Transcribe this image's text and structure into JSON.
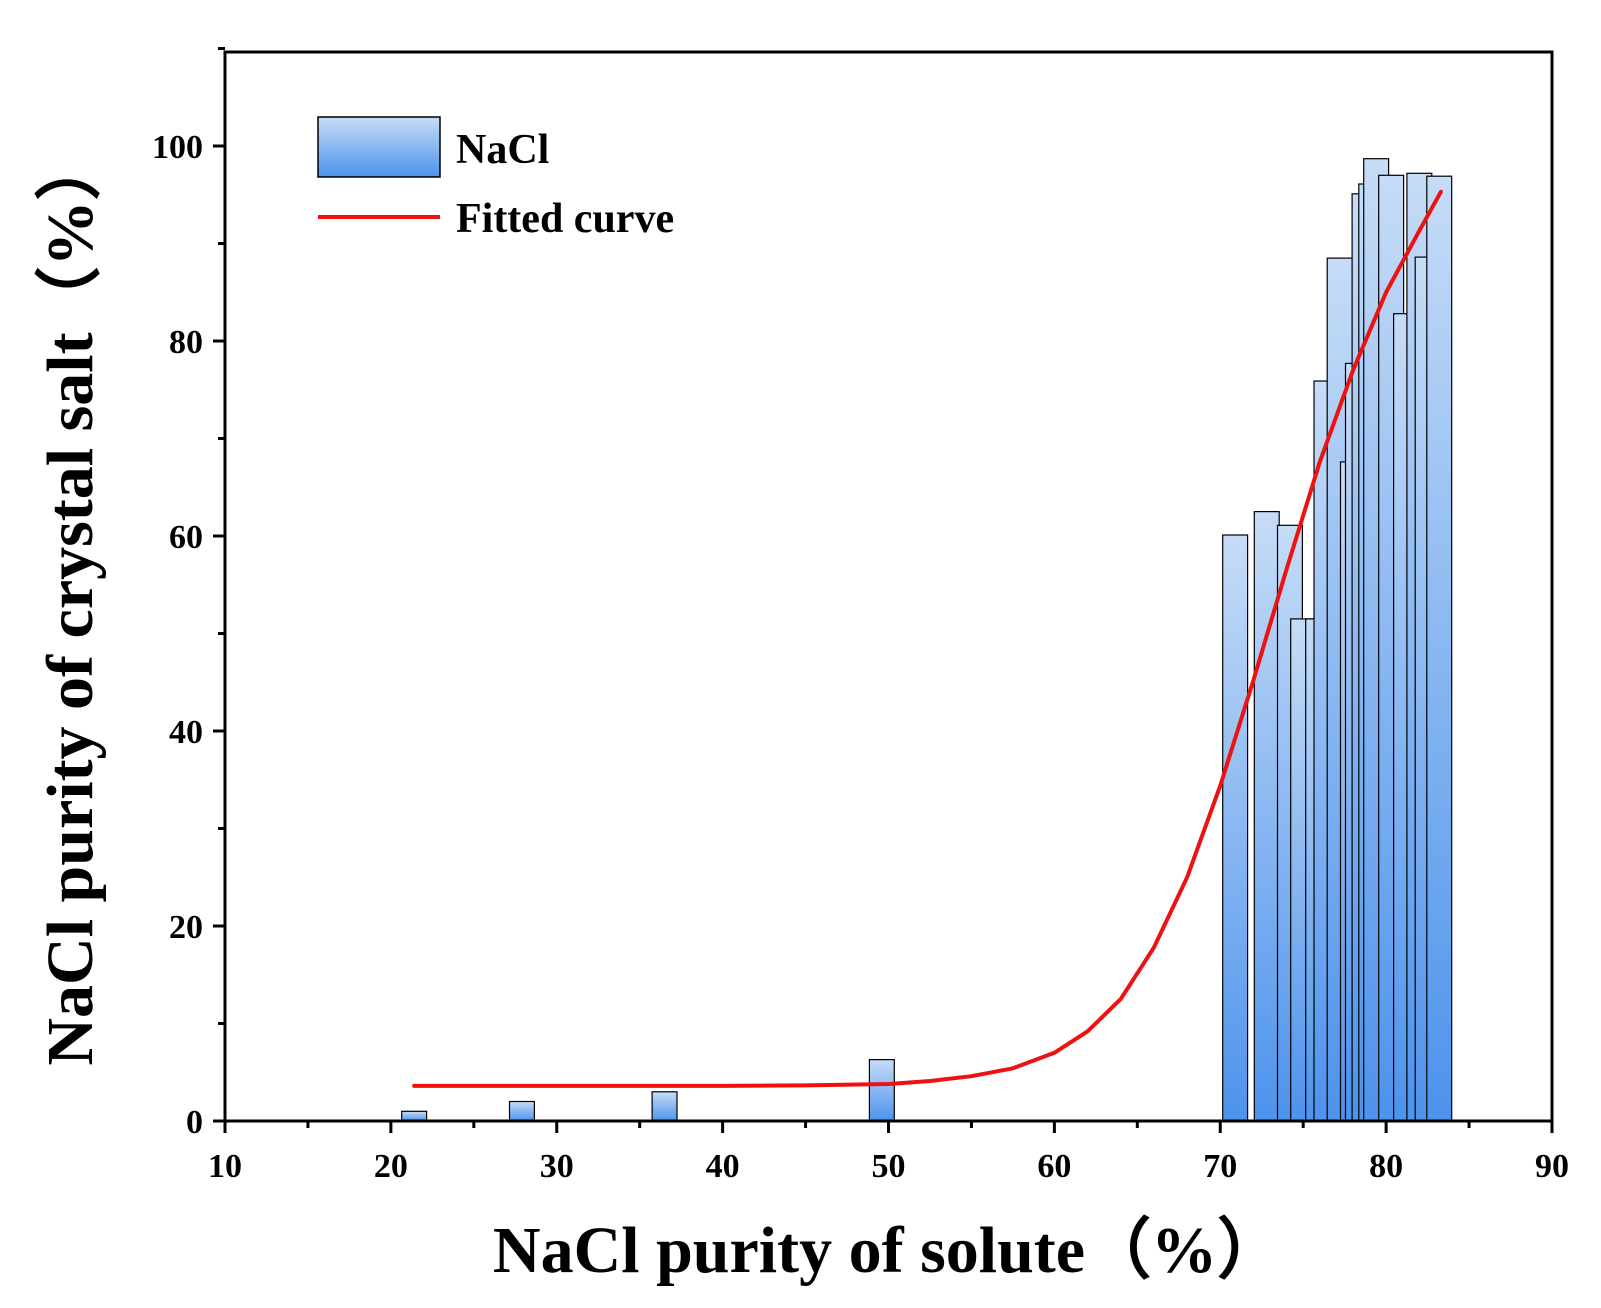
{
  "chart_data": {
    "type": "bar",
    "xlabel": "NaCl purity of solute（%）",
    "ylabel": "NaCl purity of crystal salt（%）",
    "xlim": [
      10,
      90
    ],
    "ylim": [
      0,
      110
    ],
    "x_ticks": [
      10,
      20,
      30,
      40,
      50,
      60,
      70,
      80,
      90
    ],
    "y_ticks": [
      0,
      20,
      40,
      60,
      80,
      100
    ],
    "x_ticks_minor": [
      15,
      25,
      35,
      45,
      55,
      65,
      75,
      85
    ],
    "y_ticks_minor": [
      10,
      30,
      50,
      70,
      90,
      110
    ],
    "bar_width": 1.5,
    "series": [
      {
        "name": "NaCl",
        "type": "bar",
        "points": [
          {
            "x": 21.4,
            "y": 1.0
          },
          {
            "x": 27.9,
            "y": 2.0
          },
          {
            "x": 36.5,
            "y": 3.0
          },
          {
            "x": 49.6,
            "y": 6.3
          },
          {
            "x": 70.9,
            "y": 60.1
          },
          {
            "x": 72.8,
            "y": 62.5
          },
          {
            "x": 74.2,
            "y": 61.1
          },
          {
            "x": 75.0,
            "y": 51.5
          },
          {
            "x": 75.9,
            "y": 51.5
          },
          {
            "x": 76.4,
            "y": 75.9
          },
          {
            "x": 77.2,
            "y": 88.5
          },
          {
            "x": 78.0,
            "y": 67.6
          },
          {
            "x": 78.3,
            "y": 77.7
          },
          {
            "x": 78.7,
            "y": 95.1
          },
          {
            "x": 79.1,
            "y": 96.1
          },
          {
            "x": 79.4,
            "y": 98.7
          },
          {
            "x": 80.3,
            "y": 97.0
          },
          {
            "x": 81.2,
            "y": 82.8
          },
          {
            "x": 82.0,
            "y": 97.2
          },
          {
            "x": 82.5,
            "y": 88.6
          },
          {
            "x": 83.2,
            "y": 96.9
          }
        ]
      },
      {
        "name": "Fitted curve",
        "type": "line",
        "color": "#ee1111",
        "x": [
          21.4,
          30,
          40,
          45,
          50,
          52.5,
          55,
          57.5,
          60,
          62,
          64,
          66,
          68,
          70,
          72,
          74,
          76,
          78,
          80,
          82,
          83.3
        ],
        "y": [
          3.6,
          3.6,
          3.6,
          3.65,
          3.8,
          4.1,
          4.6,
          5.4,
          7.0,
          9.2,
          12.5,
          17.8,
          25.0,
          34.4,
          45.2,
          56.6,
          67.6,
          77.0,
          85.0,
          91.3,
          95.3
        ]
      }
    ],
    "legend": {
      "position": "top-left",
      "entries": [
        "NaCl",
        "Fitted curve"
      ]
    },
    "colors": {
      "bar_top": "#c6dcf7",
      "bar_bottom": "#4d93ec",
      "bar_edge": "#000000",
      "curve": "#ee1111"
    }
  }
}
